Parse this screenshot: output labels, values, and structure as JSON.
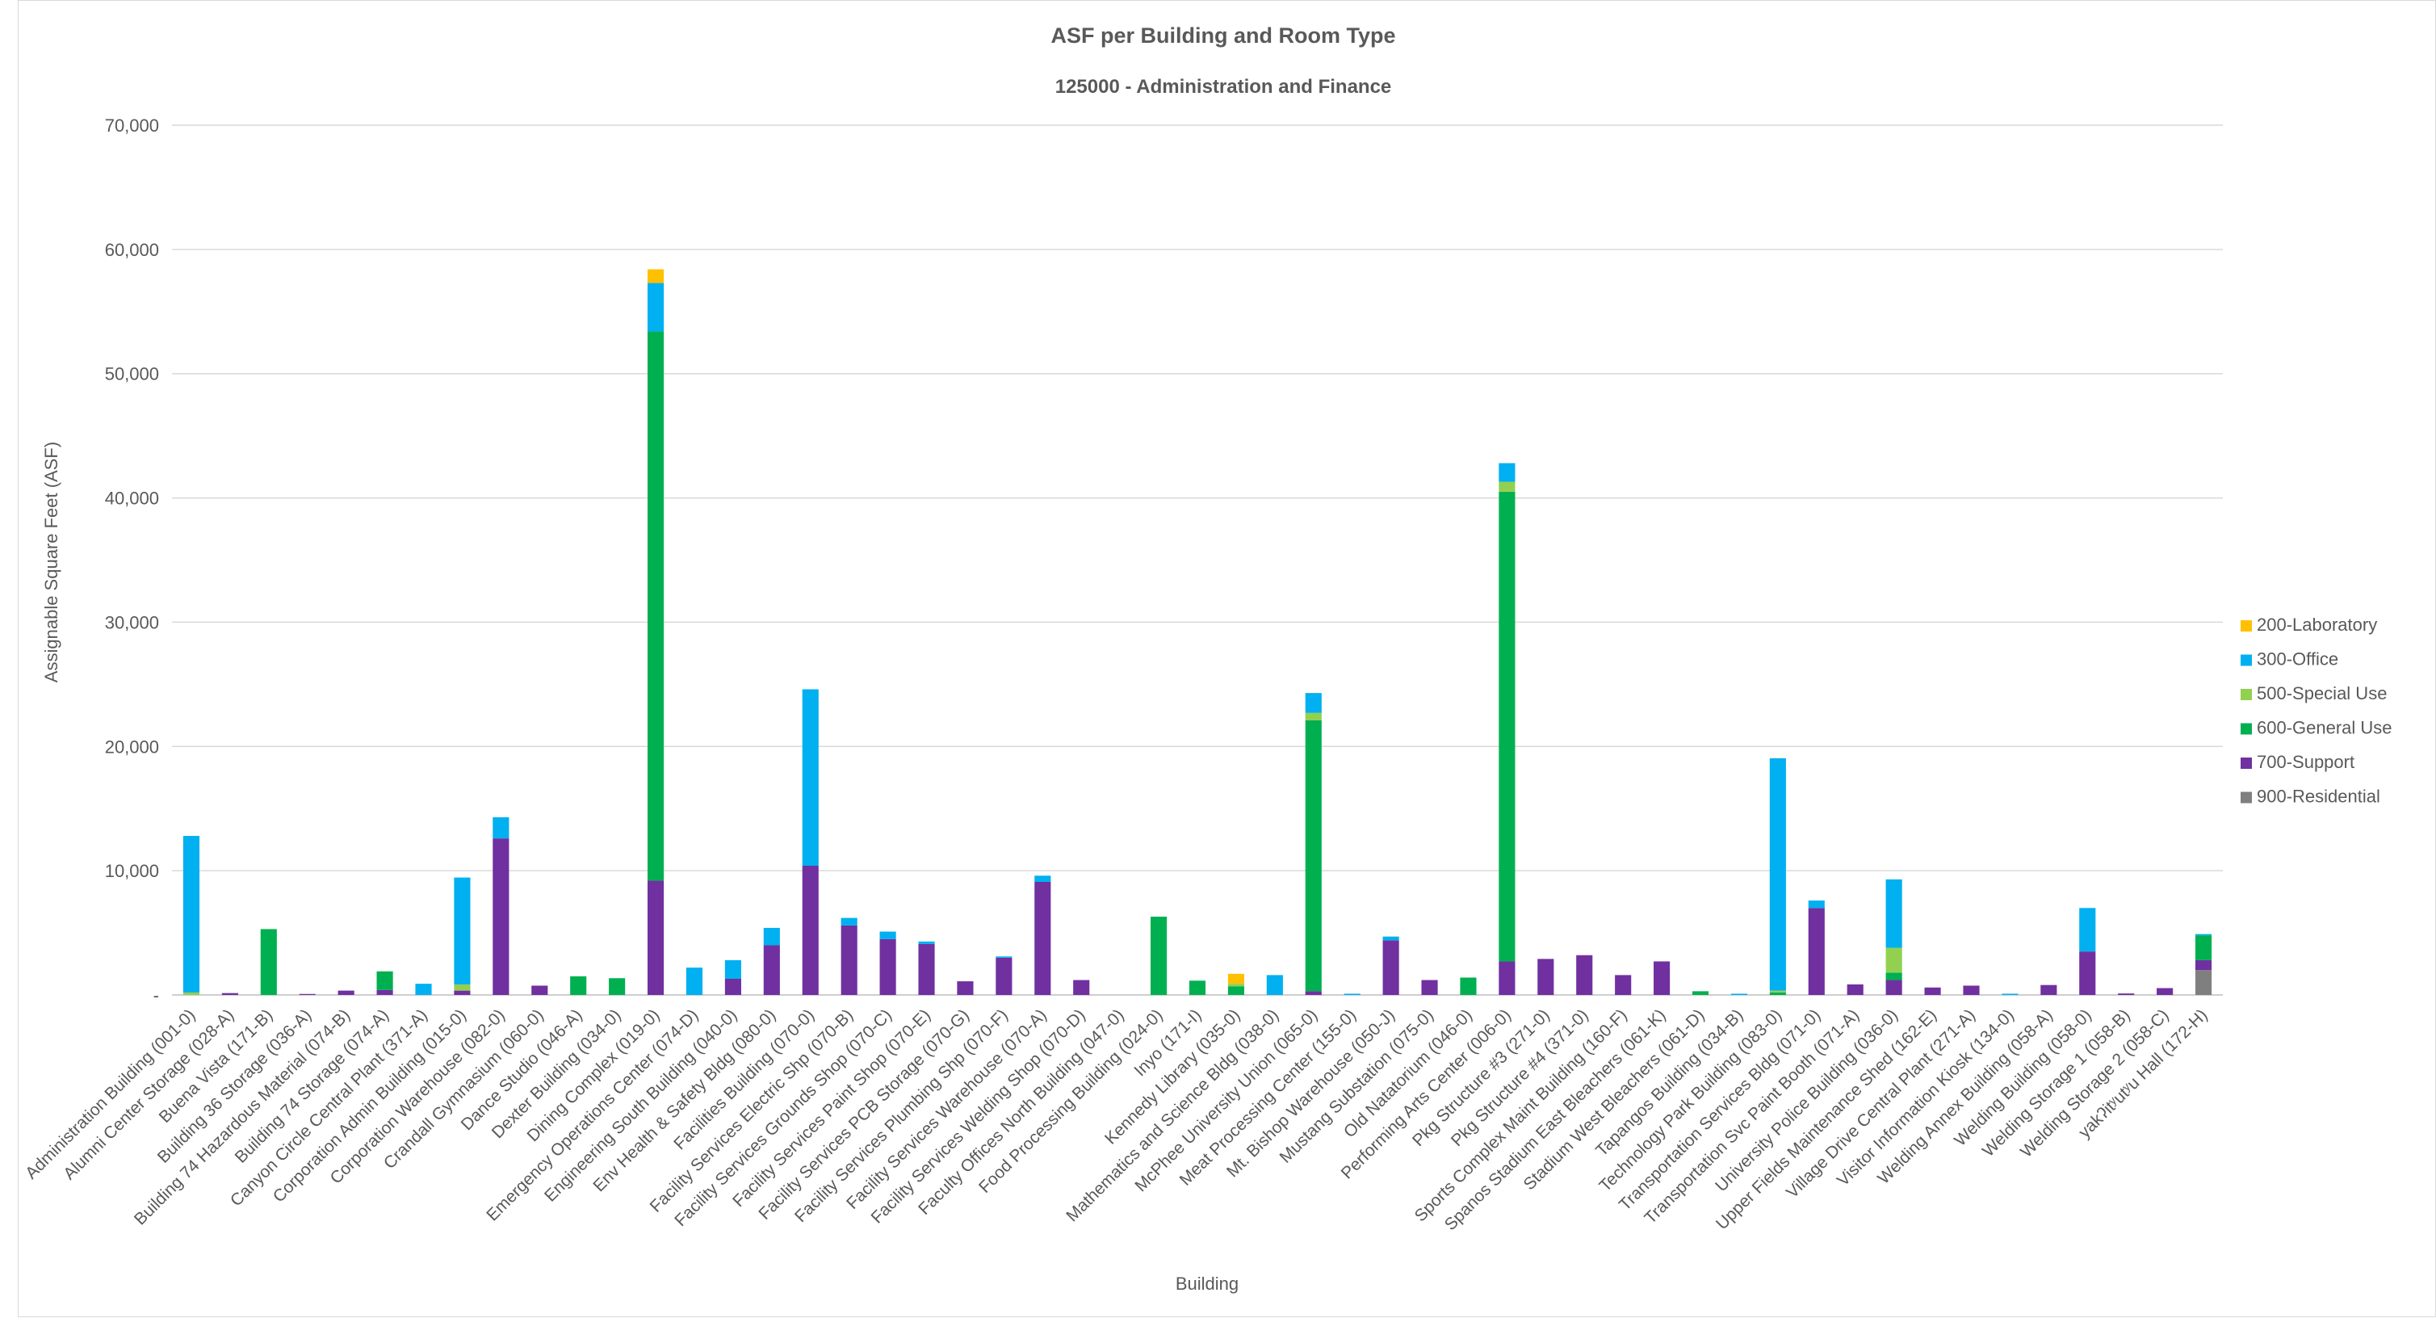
{
  "chart_data": {
    "type": "bar",
    "stacked": true,
    "title": "ASF per Building and Room Type",
    "subtitle": "125000 - Administration and Finance",
    "xlabel": "Building",
    "ylabel": "Assignable Square Feet (ASF)",
    "ylim": [
      0,
      70000
    ],
    "yticks": [
      0,
      10000,
      20000,
      30000,
      40000,
      50000,
      60000,
      70000
    ],
    "ytick_labels": [
      "-",
      "10,000",
      "20,000",
      "30,000",
      "40,000",
      "50,000",
      "60,000",
      "70,000"
    ],
    "grid": true,
    "legend_position": "right",
    "categories": [
      "Administration Building (001-0)",
      "Alumni Center Storage (028-A)",
      "Buena Vista (171-B)",
      "Building 36 Storage (036-A)",
      "Building 74 Hazardous Material (074-B)",
      "Building 74 Storage (074-A)",
      "Canyon Circle Central Plant (371-A)",
      "Corporation Admin Building (015-0)",
      "Corporation Warehouse (082-0)",
      "Crandall Gymnasium (060-0)",
      "Dance Studio (046-A)",
      "Dexter Building (034-0)",
      "Dining Complex (019-0)",
      "Emergency Operations Center (074-D)",
      "Engineering South Building (040-0)",
      "Env Health & Safety Bldg (080-0)",
      "Facilities Building (070-0)",
      "Facility Services Electric Shp (070-B)",
      "Facility Services Grounds Shop (070-C)",
      "Facility Services Paint Shop (070-E)",
      "Facility Services PCB Storage (070-G)",
      "Facility Services Plumbing Shp (070-F)",
      "Facility Services Warehouse (070-A)",
      "Facility Services Welding Shop (070-D)",
      "Faculty Offices North Building (047-0)",
      "Food Processing Building (024-0)",
      "Inyo (171-I)",
      "Kennedy Library (035-0)",
      "Mathematics and Science Bldg (038-0)",
      "McPhee University Union (065-0)",
      "Meat Processing Center (155-0)",
      "Mt. Bishop Warehouse (050-J)",
      "Mustang Substation (075-0)",
      "Old Natatorium (046-0)",
      "Performing Arts Center (006-0)",
      "Pkg Structure #3 (271-0)",
      "Pkg Structure #4 (371-0)",
      "Sports Complex Maint Building (160-F)",
      "Spanos Stadium East Bleachers (061-K)",
      "Stadium West Bleachers (061-D)",
      "Tapangos Building (034-B)",
      "Technology Park Building (083-0)",
      "Transportation Services Bldg (071-0)",
      "Transportation Svc Paint Booth (071-A)",
      "University Police Building (036-0)",
      "Upper Fields Maintenance Shed (162-E)",
      "Village Drive Central Plant (271-A)",
      "Visitor Information Kiosk (134-0)",
      "Welding Annex Building (058-A)",
      "Welding Building (058-0)",
      "Welding Storage 1 (058-B)",
      "Welding Storage 2 (058-C)",
      "yakʔitʸutʸu Hall (172-H)"
    ],
    "series": [
      {
        "name": "900-Residential",
        "color": "#7f7f7f",
        "values": [
          0,
          0,
          0,
          0,
          0,
          0,
          0,
          0,
          0,
          0,
          0,
          0,
          0,
          0,
          0,
          0,
          0,
          0,
          0,
          0,
          0,
          0,
          0,
          0,
          0,
          0,
          0,
          0,
          0,
          0,
          0,
          0,
          0,
          0,
          0,
          0,
          0,
          0,
          0,
          0,
          0,
          0,
          0,
          0,
          0,
          0,
          0,
          0,
          0,
          0,
          0,
          0,
          2000
        ]
      },
      {
        "name": "700-Support",
        "color": "#7030a0",
        "values": [
          0,
          150,
          0,
          80,
          350,
          400,
          0,
          350,
          12600,
          750,
          0,
          0,
          9200,
          0,
          1300,
          4000,
          10400,
          5600,
          4500,
          4100,
          1100,
          3000,
          9100,
          1200,
          0,
          0,
          0,
          0,
          0,
          300,
          0,
          4400,
          1200,
          0,
          2700,
          2900,
          3200,
          1600,
          2700,
          0,
          0,
          0,
          7000,
          850,
          1200,
          600,
          750,
          0,
          800,
          3500,
          120,
          550,
          800
        ]
      },
      {
        "name": "600-General Use",
        "color": "#00b050",
        "values": [
          0,
          0,
          5300,
          0,
          0,
          1500,
          0,
          0,
          0,
          0,
          1500,
          1350,
          44200,
          0,
          0,
          0,
          0,
          0,
          0,
          0,
          0,
          0,
          0,
          0,
          0,
          6300,
          1150,
          700,
          0,
          21800,
          0,
          0,
          0,
          1400,
          37800,
          0,
          0,
          0,
          0,
          300,
          0,
          200,
          0,
          0,
          600,
          0,
          0,
          0,
          0,
          0,
          0,
          0,
          2000
        ]
      },
      {
        "name": "500-Special Use",
        "color": "#92d050",
        "values": [
          200,
          0,
          0,
          0,
          0,
          0,
          0,
          500,
          0,
          0,
          0,
          0,
          0,
          0,
          0,
          0,
          0,
          0,
          0,
          0,
          0,
          0,
          0,
          0,
          0,
          0,
          0,
          200,
          0,
          600,
          0,
          0,
          0,
          0,
          800,
          0,
          0,
          0,
          0,
          0,
          0,
          150,
          0,
          0,
          2000,
          0,
          0,
          0,
          0,
          0,
          0,
          0,
          0
        ]
      },
      {
        "name": "300-Office",
        "color": "#00b0f0",
        "values": [
          12600,
          0,
          0,
          0,
          0,
          0,
          900,
          8600,
          1700,
          0,
          0,
          0,
          3900,
          2200,
          1500,
          1400,
          14200,
          600,
          600,
          200,
          0,
          100,
          500,
          0,
          0,
          0,
          0,
          0,
          1600,
          1600,
          100,
          300,
          0,
          0,
          1500,
          0,
          0,
          0,
          0,
          0,
          100,
          18700,
          600,
          0,
          5500,
          0,
          0,
          100,
          0,
          3500,
          0,
          0,
          100
        ]
      },
      {
        "name": "200-Laboratory",
        "color": "#ffc000",
        "values": [
          0,
          0,
          0,
          0,
          0,
          0,
          0,
          0,
          0,
          0,
          0,
          0,
          1100,
          0,
          0,
          0,
          0,
          0,
          0,
          0,
          0,
          0,
          0,
          0,
          0,
          0,
          0,
          800,
          0,
          0,
          0,
          0,
          0,
          0,
          0,
          0,
          0,
          0,
          0,
          0,
          0,
          0,
          0,
          0,
          0,
          0,
          0,
          0,
          0,
          0,
          0,
          0,
          0
        ]
      }
    ],
    "legend_order": [
      "200-Laboratory",
      "300-Office",
      "500-Special Use",
      "600-General Use",
      "700-Support",
      "900-Residential"
    ]
  }
}
